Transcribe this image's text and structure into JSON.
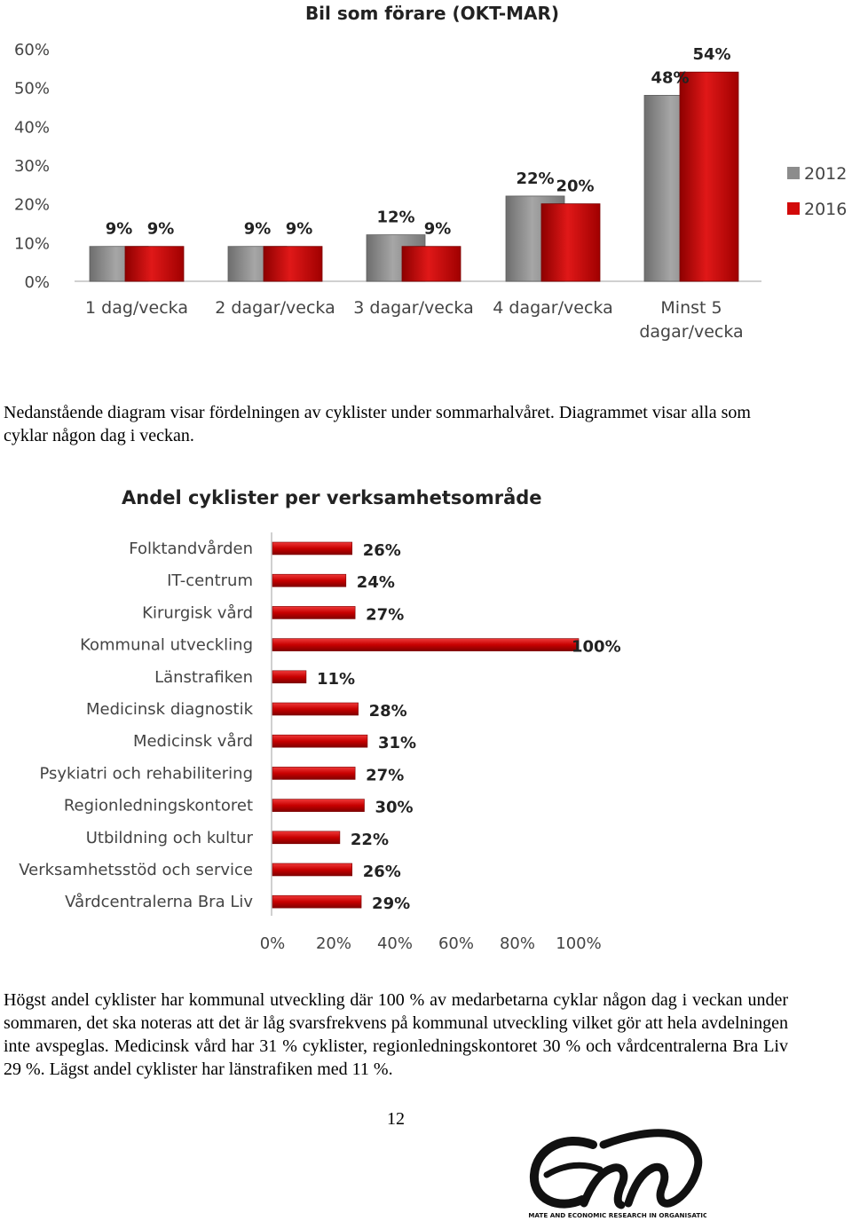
{
  "paragraph1": "Nedanstående diagram visar fördelningen av cyklister under sommarhalvåret. Diagrammet visar alla som cyklar någon dag i veckan.",
  "paragraph2": "Högst andel cyklister har kommunal utveckling där 100 % av medarbetarna cyklar någon dag i veckan under sommaren, det ska noteras att det är låg svarsfrekvens på kommunal utveckling vilket gör att hela avdelningen inte avspeglas. Medicinsk vård har 31 % cyklister, regionledningskontoret 30 % och vårdcentralerna Bra Liv 29 %. Lägst andel cyklister har länstrafiken med 11 %.",
  "page_number": "12",
  "logo": {
    "caption": "CLIMATE AND ECONOMIC RESEARCH IN ORGANISATIONS",
    "color": "#111111"
  },
  "chart_data": [
    {
      "type": "bar",
      "title": "Bil som förare (OKT-MAR)",
      "categories": [
        "1 dag/vecka",
        "2 dagar/vecka",
        "3 dagar/vecka",
        "4 dagar/vecka",
        "Minst 5 dagar/vecka"
      ],
      "series": [
        {
          "name": "2012",
          "values": [
            9,
            9,
            12,
            22,
            48
          ],
          "labels": [
            "9%",
            "9%",
            "12%",
            "22%",
            "48%"
          ],
          "color": "#8c8c8c"
        },
        {
          "name": "2016",
          "values": [
            9,
            9,
            9,
            20,
            54
          ],
          "labels": [
            "9%",
            "9%",
            "9%",
            "20%",
            "54%"
          ],
          "color": "#d20a0a"
        }
      ],
      "ylim": [
        0,
        60
      ],
      "yticks": [
        "0%",
        "10%",
        "20%",
        "30%",
        "40%",
        "50%",
        "60%"
      ],
      "legend": "right",
      "grid": false
    },
    {
      "type": "bar",
      "orientation": "horizontal",
      "title": "Andel cyklister per verksamhetsområde",
      "categories": [
        "Folktandvården",
        "IT-centrum",
        "Kirurgisk vård",
        "Kommunal utveckling",
        "Länstrafiken",
        "Medicinsk diagnostik",
        "Medicinsk vård",
        "Psykiatri och rehabilitering",
        "Regionledningskontoret",
        "Utbildning och kultur",
        "Verksamhetsstöd och service",
        "Vårdcentralerna Bra Liv"
      ],
      "values": [
        26,
        24,
        27,
        100,
        11,
        28,
        31,
        27,
        30,
        22,
        26,
        29
      ],
      "labels": [
        "26%",
        "24%",
        "27%",
        "100%",
        "11%",
        "28%",
        "31%",
        "27%",
        "30%",
        "22%",
        "26%",
        "29%"
      ],
      "color": "#d20a0a",
      "xlim": [
        0,
        100
      ],
      "xticks": [
        "0%",
        "20%",
        "40%",
        "60%",
        "80%",
        "100%"
      ],
      "grid": false
    }
  ]
}
